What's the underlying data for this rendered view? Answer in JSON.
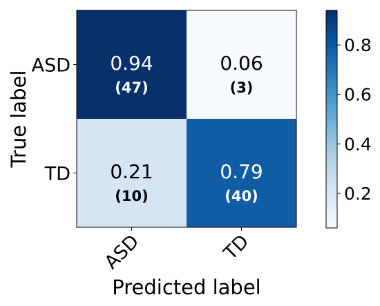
{
  "chart_data": {
    "type": "heatmap",
    "title": "",
    "xlabel": "Predicted label",
    "ylabel": "True label",
    "x_categories": [
      "ASD",
      "TD"
    ],
    "y_categories": [
      "ASD",
      "TD"
    ],
    "cells": [
      [
        {
          "value": 0.94,
          "value_label": "0.94",
          "count": 47,
          "count_label": "(47)"
        },
        {
          "value": 0.06,
          "value_label": "0.06",
          "count": 3,
          "count_label": "(3)"
        }
      ],
      [
        {
          "value": 0.21,
          "value_label": "0.21",
          "count": 10,
          "count_label": "(10)"
        },
        {
          "value": 0.79,
          "value_label": "0.79",
          "count": 40,
          "count_label": "(40)"
        }
      ]
    ],
    "colorbar": {
      "min": 0.06,
      "max": 0.94,
      "ticks": [
        0.2,
        0.4,
        0.6,
        0.8
      ],
      "tick_labels": [
        "0.2",
        "0.4",
        "0.6",
        "0.8"
      ],
      "colormap": "Blues"
    },
    "grid": false,
    "legend": "none"
  }
}
